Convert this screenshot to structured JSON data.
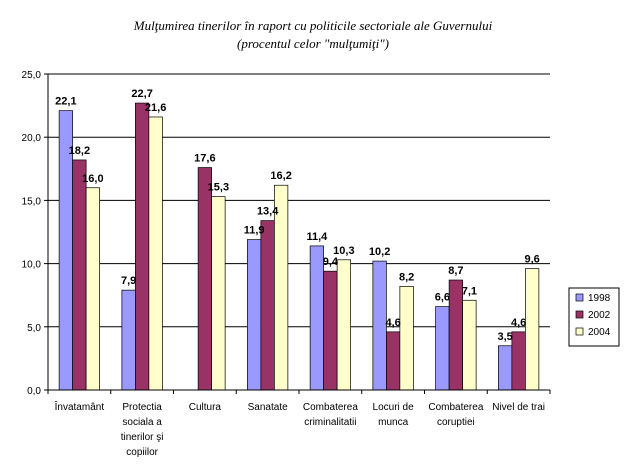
{
  "chart_data": {
    "type": "bar",
    "title_lines": [
      "Mulţumirea tinerilor în raport cu politicile sectoriale ale Guvernului",
      "(procentul celor \"mulţumiţi\")"
    ],
    "categories": [
      [
        "Învatamânt"
      ],
      [
        "Protectia",
        "sociala a",
        "tinerilor şi",
        "copiilor"
      ],
      [
        "Cultura"
      ],
      [
        "Sanatate"
      ],
      [
        "Combaterea",
        "criminalitatii"
      ],
      [
        "Locuri de",
        "munca"
      ],
      [
        "Combaterea",
        "coruptiei"
      ],
      [
        "Nivel de trai"
      ]
    ],
    "series": [
      {
        "name": "1998",
        "color": "#9999ff",
        "values": [
          22.1,
          7.9,
          null,
          11.9,
          11.4,
          10.2,
          6.6,
          3.5
        ],
        "labels": [
          "22,1",
          "7,9",
          "",
          "11,9",
          "11,4",
          "10,2",
          "6,6",
          "3,5"
        ]
      },
      {
        "name": "2002",
        "color": "#993366",
        "values": [
          18.2,
          22.7,
          17.6,
          13.4,
          9.4,
          4.6,
          8.7,
          4.6
        ],
        "labels": [
          "18,2",
          "22,7",
          "17,6",
          "13,4",
          "9,4",
          "4,6",
          "8,7",
          "4,6"
        ]
      },
      {
        "name": "2004",
        "color": "#ffffcc",
        "values": [
          16.0,
          21.6,
          15.3,
          16.2,
          10.3,
          8.2,
          7.1,
          9.6
        ],
        "labels": [
          "16,0",
          "21,6",
          "15,3",
          "16,2",
          "10,3",
          "8,2",
          "7,1",
          "9,6"
        ]
      }
    ],
    "ylim": [
      0,
      25
    ],
    "yticks": [
      0,
      5,
      10,
      15,
      20,
      25
    ],
    "ytick_labels": [
      "0,0",
      "5,0",
      "10,0",
      "15,0",
      "20,0",
      "25,0"
    ],
    "grid": true,
    "legend": "right"
  }
}
